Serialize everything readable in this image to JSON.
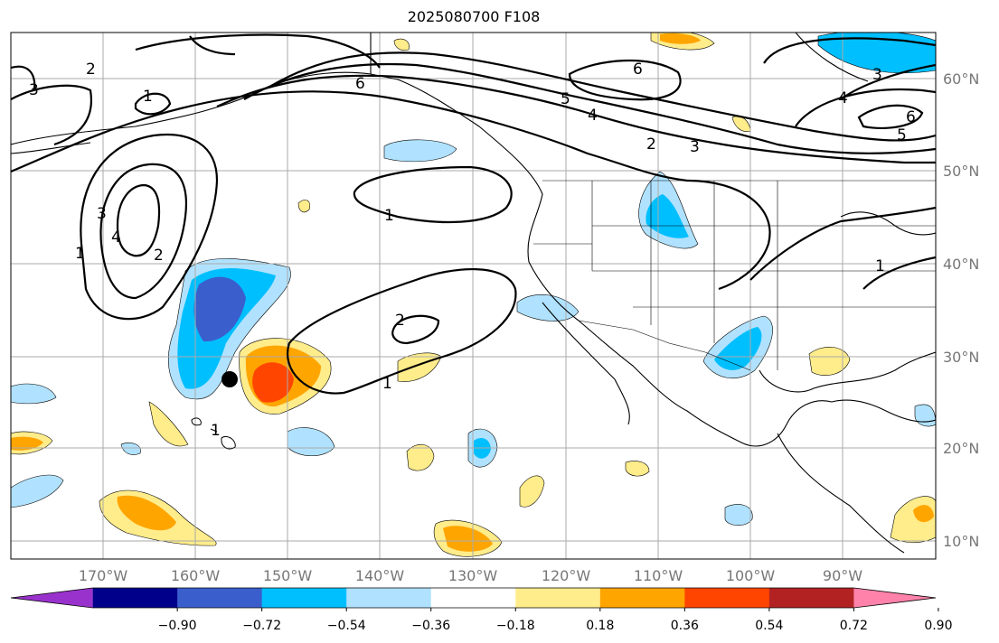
{
  "title": "2025080700 F108",
  "map": {
    "lat_labels": [
      "60°N",
      "50°N",
      "40°N",
      "30°N",
      "20°N",
      "10°N"
    ],
    "lon_labels": [
      "170°W",
      "160°W",
      "150°W",
      "140°W",
      "130°W",
      "120°W",
      "110°W",
      "100°W",
      "90°W"
    ],
    "contour_labels": [
      "1",
      "2",
      "3",
      "4",
      "5",
      "6"
    ]
  },
  "colorbar": {
    "colors": [
      "#9932cc",
      "#00008b",
      "#3a5fcd",
      "#00bfff",
      "#b0e2ff",
      "#ffffff",
      "#ffec8b",
      "#ffa500",
      "#ff4500",
      "#b22222",
      "#ff82ab"
    ],
    "ticks": [
      "−0.90",
      "−0.72",
      "−0.54",
      "−0.36",
      "−0.18",
      "0.18",
      "0.36",
      "0.54",
      "0.72",
      "0.90"
    ]
  }
}
